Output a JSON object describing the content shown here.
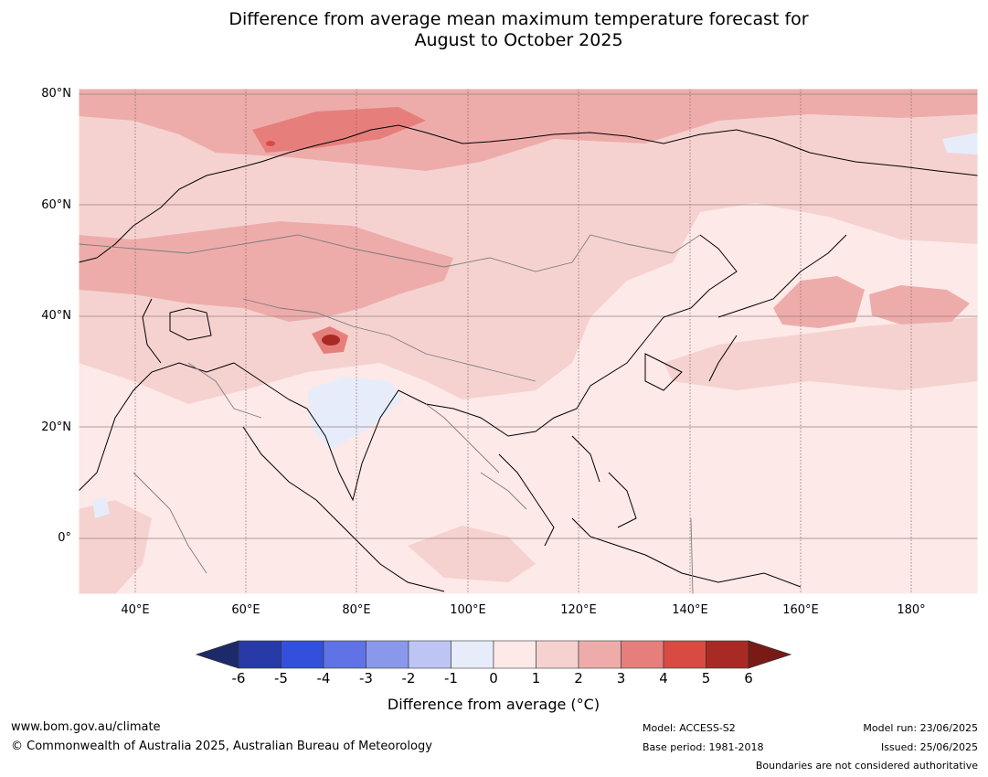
{
  "title": {
    "line1": "Difference from average mean maximum temperature forecast for",
    "line2": "August to October 2025"
  },
  "map": {
    "lon_range_deg_e": [
      30,
      192
    ],
    "lat_range_deg": [
      -10,
      81
    ],
    "lat_labels": [
      "80°N",
      "60°N",
      "40°N",
      "20°N",
      "0°"
    ],
    "lon_labels": [
      "40°E",
      "60°E",
      "80°E",
      "100°E",
      "120°E",
      "140°E",
      "160°E",
      "180°"
    ]
  },
  "colorbar": {
    "title": "Difference from average (°C)",
    "ticks": [
      "-6",
      "-5",
      "-4",
      "-3",
      "-2",
      "-1",
      "0",
      "1",
      "2",
      "3",
      "4",
      "5",
      "6"
    ],
    "colors": [
      "#1c2a6b",
      "#283aa8",
      "#3350dc",
      "#5f73e6",
      "#8a98ec",
      "#bcc5f4",
      "#e7ecfb",
      "#fce9e8",
      "#f5d2d0",
      "#edacaa",
      "#e67f7c",
      "#d94a43",
      "#a92a24",
      "#7a1a16"
    ]
  },
  "footer": {
    "website": "www.bom.gov.au/climate",
    "copyright": "© Commonwealth of Australia 2025, Australian Bureau of Meteorology",
    "model": "Model: ACCESS-S2",
    "base_period": "Base period: 1981-2018",
    "model_run": "Model run: 23/06/2025",
    "issued": "Issued: 25/06/2025",
    "disclaimer": "Boundaries are not considered authoritative"
  }
}
